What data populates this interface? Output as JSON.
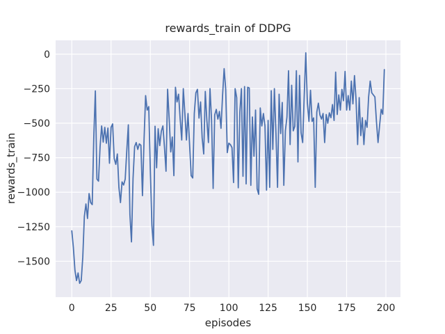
{
  "chart_data": {
    "type": "line",
    "title": "rewards_train of DDPG",
    "xlabel": "episodes",
    "ylabel": "rewards_train",
    "x_ticks": [
      0,
      25,
      50,
      75,
      100,
      125,
      150,
      175,
      200
    ],
    "y_ticks": [
      0,
      -250,
      -500,
      -750,
      -1000,
      -1250,
      -1500
    ],
    "xlim": [
      -10.3,
      209.3
    ],
    "ylim": [
      -1760,
      100
    ],
    "grid": true,
    "legend": "none",
    "plot_bg_color": "#EAEAF2",
    "grid_color": "#FFFFFF",
    "text_color": "#262626",
    "series": [
      {
        "name": "rewards_train",
        "color": "#4C72B0",
        "x_start": 0,
        "x_step": 1,
        "values": [
          -1280,
          -1400,
          -1565,
          -1640,
          -1585,
          -1660,
          -1640,
          -1470,
          -1175,
          -1085,
          -1190,
          -1010,
          -1075,
          -1090,
          -600,
          -266,
          -905,
          -920,
          -672,
          -520,
          -637,
          -530,
          -645,
          -535,
          -790,
          -530,
          -505,
          -756,
          -798,
          -723,
          -965,
          -1075,
          -925,
          -948,
          -905,
          -700,
          -512,
          -1160,
          -1360,
          -900,
          -670,
          -640,
          -690,
          -650,
          -660,
          -1025,
          -622,
          -300,
          -405,
          -380,
          -840,
          -1240,
          -1385,
          -522,
          -823,
          -540,
          -662,
          -558,
          -520,
          -672,
          -848,
          -254,
          -470,
          -708,
          -600,
          -880,
          -240,
          -346,
          -290,
          -470,
          -622,
          -250,
          -430,
          -622,
          -430,
          -655,
          -880,
          -897,
          -430,
          -280,
          -255,
          -463,
          -346,
          -606,
          -723,
          -270,
          -480,
          -640,
          -250,
          -480,
          -973,
          -440,
          -400,
          -470,
          -415,
          -537,
          -300,
          -105,
          -255,
          -713,
          -645,
          -655,
          -677,
          -930,
          -250,
          -315,
          -968,
          -420,
          -250,
          -885,
          -235,
          -940,
          -240,
          -245,
          -950,
          -455,
          -740,
          -405,
          -975,
          -1015,
          -390,
          -520,
          -430,
          -520,
          -985,
          -480,
          -965,
          -265,
          -690,
          -250,
          -575,
          -965,
          -290,
          -575,
          -350,
          -950,
          -555,
          -455,
          -120,
          -655,
          -225,
          -555,
          -522,
          -120,
          -781,
          -154,
          -570,
          -640,
          -300,
          10,
          -355,
          -487,
          -262,
          -487,
          -462,
          -965,
          -420,
          -355,
          -440,
          -470,
          -430,
          -640,
          -437,
          -500,
          -425,
          -460,
          -365,
          -480,
          -130,
          -437,
          -295,
          -405,
          -255,
          -337,
          -125,
          -405,
          -300,
          -405,
          -195,
          -360,
          -155,
          -330,
          -655,
          -315,
          -590,
          -460,
          -655,
          -480,
          -530,
          -310,
          -195,
          -280,
          -295,
          -310,
          -490,
          -640,
          -515,
          -400,
          -435,
          -112
        ]
      }
    ]
  }
}
